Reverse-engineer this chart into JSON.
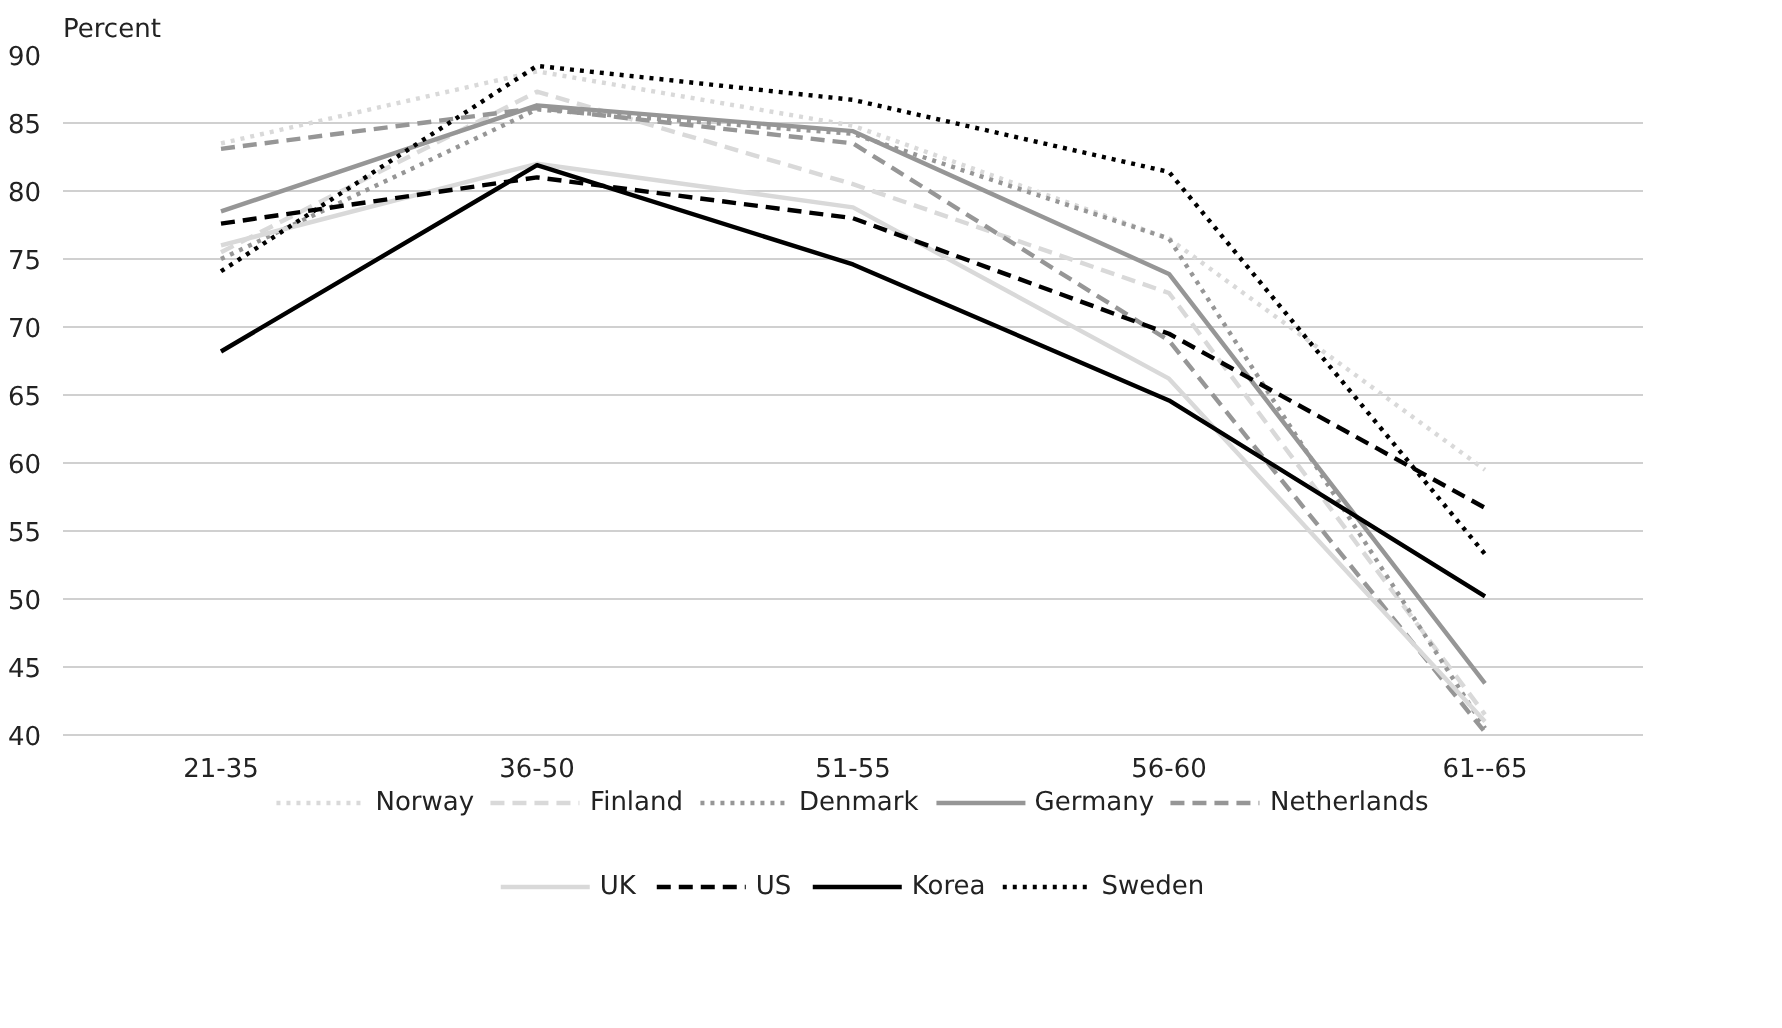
{
  "chart_data": {
    "type": "line",
    "ylabel": "Percent",
    "categories": [
      "21-35",
      "36-50",
      "51-55",
      "56-60",
      "61--65"
    ],
    "ylim": [
      40,
      90
    ],
    "yticks": [
      40,
      45,
      50,
      55,
      60,
      65,
      70,
      75,
      80,
      85,
      90
    ],
    "grid": "y",
    "legend": "bottom",
    "series": [
      {
        "name": "Norway",
        "color": "#d9d9d9",
        "line_style": "dotted",
        "values": [
          83.5,
          88.8,
          84.8,
          76.5,
          59.5
        ]
      },
      {
        "name": "Finland",
        "color": "#d9d9d9",
        "line_style": "dashed",
        "values": [
          75.5,
          87.3,
          80.5,
          72.5,
          41.5
        ]
      },
      {
        "name": "Denmark",
        "color": "#969696",
        "line_style": "dotted",
        "values": [
          75.0,
          86.0,
          84.2,
          76.5,
          40.5
        ]
      },
      {
        "name": "Germany",
        "color": "#969696",
        "line_style": "solid",
        "values": [
          78.5,
          86.3,
          84.4,
          73.9,
          43.8
        ]
      },
      {
        "name": "Netherlands",
        "color": "#969696",
        "line_style": "dashed",
        "values": [
          83.1,
          86.1,
          83.5,
          69.0,
          40.2
        ]
      },
      {
        "name": "UK",
        "color": "#d9d9d9",
        "line_style": "solid",
        "values": [
          76.0,
          82.0,
          78.8,
          66.2,
          41.0
        ]
      },
      {
        "name": "US",
        "color": "#000000",
        "line_style": "dashed",
        "values": [
          77.6,
          81.0,
          78.0,
          69.5,
          56.7
        ]
      },
      {
        "name": "Korea",
        "color": "#000000",
        "line_style": "solid",
        "values": [
          68.2,
          81.9,
          74.6,
          64.6,
          50.2
        ]
      },
      {
        "name": "Sweden",
        "color": "#000000",
        "line_style": "dotted",
        "values": [
          74.1,
          89.2,
          86.7,
          81.4,
          53.3
        ]
      }
    ]
  }
}
